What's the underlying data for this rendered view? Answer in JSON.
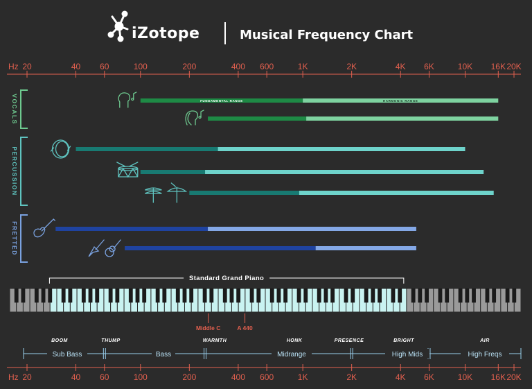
{
  "header": {
    "brand": "iZotope",
    "title": "Musical Frequency Chart"
  },
  "chart_data": {
    "type": "range-bar",
    "title": "Musical Frequency Chart",
    "x_axis": {
      "scale": "log",
      "unit_label": "Hz",
      "range": [
        18,
        22000
      ],
      "ticks": [
        {
          "value": 20,
          "label": "20"
        },
        {
          "value": 40,
          "label": "40"
        },
        {
          "value": 60,
          "label": "60"
        },
        {
          "value": 100,
          "label": "100"
        },
        {
          "value": 200,
          "label": "200"
        },
        {
          "value": 400,
          "label": "400"
        },
        {
          "value": 600,
          "label": "600"
        },
        {
          "value": 1000,
          "label": "1K"
        },
        {
          "value": 2000,
          "label": "2K"
        },
        {
          "value": 4000,
          "label": "4K"
        },
        {
          "value": 6000,
          "label": "6K"
        },
        {
          "value": 10000,
          "label": "10K"
        },
        {
          "value": 16000,
          "label": "16K"
        },
        {
          "value": 20000,
          "label": "20K"
        }
      ]
    },
    "range_labels": {
      "fundamental": "FUNDAMENTAL RANGE",
      "harmonic": "HARMONIC RANGE"
    },
    "groups": [
      {
        "name": "VOCALS",
        "color": "#6ec98f",
        "dark_color": "#1e8a45",
        "light_color": "#7ed3a0",
        "instruments": [
          {
            "icon": "male-singer-icon",
            "fundamental": [
              100,
              1000
            ],
            "harmonic": [
              1000,
              16000
            ]
          },
          {
            "icon": "female-singer-icon",
            "fundamental": [
              260,
              1050
            ],
            "harmonic": [
              1050,
              16000
            ]
          }
        ]
      },
      {
        "name": "PERCUSSION",
        "color": "#5fc4c0",
        "dark_color": "#187a72",
        "light_color": "#6ed3cb",
        "instruments": [
          {
            "icon": "kick-drum-icon",
            "fundamental": [
              40,
              300
            ],
            "harmonic": [
              300,
              10000
            ]
          },
          {
            "icon": "snare-drum-icon",
            "fundamental": [
              100,
              250
            ],
            "harmonic": [
              250,
              13000
            ]
          },
          {
            "icon": "cymbals-icon",
            "fundamental": [
              200,
              950
            ],
            "harmonic": [
              950,
              15000
            ]
          }
        ]
      },
      {
        "name": "FRETTED",
        "color": "#7aa2e0",
        "dark_color": "#1f43a0",
        "light_color": "#84a8e6",
        "instruments": [
          {
            "icon": "bass-guitar-icon",
            "fundamental": [
              30,
              260
            ],
            "harmonic": [
              260,
              5000
            ]
          },
          {
            "icon": "guitars-icon",
            "fundamental": [
              80,
              1200
            ],
            "harmonic": [
              1200,
              5000
            ]
          }
        ]
      }
    ],
    "piano": {
      "label": "Standard Grand Piano",
      "range": [
        27.5,
        4186
      ],
      "markers": [
        {
          "label": "Middle C",
          "value": 261.6
        },
        {
          "label": "A 440",
          "value": 440
        }
      ]
    },
    "bands": [
      {
        "name": "Sub Bass",
        "descriptor": "BOOM",
        "range": [
          20,
          60
        ]
      },
      {
        "name": "Bass",
        "descriptor": "THUMP",
        "range": [
          60,
          250
        ]
      },
      {
        "name": "Midrange",
        "descriptor": "WARMTH",
        "range": [
          250,
          2000
        ]
      },
      {
        "name": "High Mids",
        "descriptor": "HONK",
        "range": [
          2000,
          6000
        ]
      },
      {
        "name": "High Freqs",
        "descriptor": "PRESENCE",
        "range": [
          6000,
          20000
        ]
      }
    ],
    "band_descriptors": [
      "BOOM",
      "THUMP",
      "WARMTH",
      "HONK",
      "PRESENCE",
      "BRIGHT",
      "AIR"
    ],
    "colors": {
      "axis": "#e3604f",
      "background": "#2b2b2b",
      "text": "#ffffff",
      "piano_key_active": "#c9f3f1",
      "piano_key_inactive": "#9a9a9a"
    }
  }
}
